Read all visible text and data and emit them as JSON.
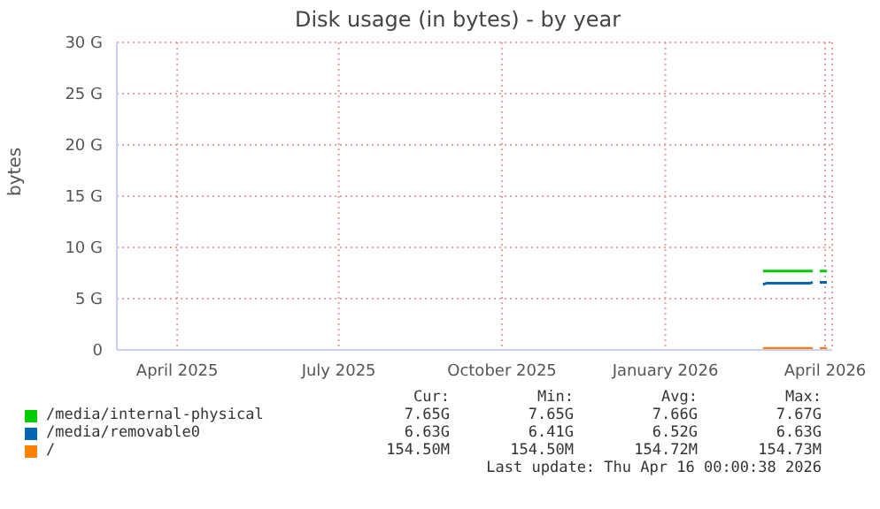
{
  "chart_data": {
    "type": "line",
    "title": "Disk usage (in bytes) - by year",
    "ylabel": "bytes",
    "x": [
      "2026-03-11",
      "2026-03-13",
      "2026-03-25",
      "2026-04-06",
      "2026-04-08",
      "2026-04-10",
      "2026-04-12",
      "2026-04-16"
    ],
    "series": [
      {
        "name": "/media/internal-physical",
        "color": "#00cc00",
        "values": [
          7.7,
          7.7,
          7.7,
          7.7,
          7.7,
          null,
          7.7,
          7.7
        ]
      },
      {
        "name": "/media/removable0",
        "color": "#0066b3",
        "values": [
          6.4,
          6.5,
          6.5,
          6.5,
          6.6,
          null,
          6.6,
          6.6
        ]
      },
      {
        "name": "/",
        "color": "#ff8000",
        "values": [
          0.15,
          0.15,
          0.15,
          0.15,
          0.15,
          null,
          0.15,
          0.15
        ]
      }
    ],
    "xlim": [
      "2025-03-12",
      "2026-04-19"
    ],
    "xticks": [
      {
        "value": "2025-04-15",
        "label": "April 2025"
      },
      {
        "value": "2025-07-15",
        "label": "July 2025"
      },
      {
        "value": "2025-10-15",
        "label": "October 2025"
      },
      {
        "value": "2026-01-15",
        "label": "January 2026"
      },
      {
        "value": "2026-04-15",
        "label": "April 2026"
      }
    ],
    "ylim": [
      0,
      30
    ],
    "yticks": [
      {
        "value": 0,
        "label": "0"
      },
      {
        "value": 5,
        "label": "5 G"
      },
      {
        "value": 10,
        "label": "10 G"
      },
      {
        "value": 15,
        "label": "15 G"
      },
      {
        "value": 20,
        "label": "20 G"
      },
      {
        "value": 25,
        "label": "25 G"
      },
      {
        "value": 30,
        "label": "30 G"
      }
    ],
    "grid": true,
    "legend": "bottom",
    "marker": "none",
    "line_style": "solid",
    "annotations": [
      "Cur:",
      "Min:",
      "Avg:",
      "Max:",
      "7.65G",
      "7.65G",
      "7.66G",
      "7.67G",
      "6.63G",
      "6.41G",
      "6.52G",
      "6.63G",
      "154.50M",
      "154.50M",
      "154.72M",
      "154.73M",
      "Last update: Thu Apr 16 00:00:38 2026"
    ]
  }
}
